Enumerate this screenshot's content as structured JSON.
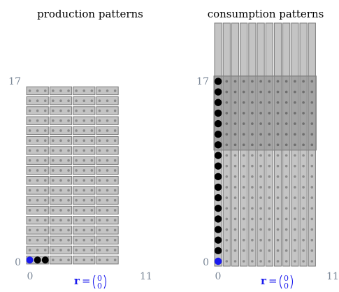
{
  "left_panel": {
    "title": "production patterns",
    "y_max_label": "17",
    "y_min_label": "0",
    "x_min_label": "0",
    "x_max_label": "11",
    "vector_name": "r",
    "vector_equals": "=",
    "vector_top": "0",
    "vector_bottom": "0",
    "black_token_cells": [
      1,
      2
    ],
    "blue_token_cell": 0
  },
  "right_panel": {
    "title": "consumption patterns",
    "y_max_label": "17",
    "y_min_label": "0",
    "x_min_label": "0",
    "x_max_label": "11",
    "vector_name": "r",
    "vector_equals": "=",
    "vector_top": "0",
    "vector_bottom": "0",
    "black_token_rows": [
      1,
      2,
      3,
      4,
      5,
      6,
      7,
      8,
      9,
      10,
      11,
      12,
      13,
      14,
      15,
      16,
      17
    ],
    "blue_token_row": 0,
    "highlight_rows_from": 11,
    "highlight_rows_to": 17
  },
  "colors": {
    "cell_fill": "#c4c4c4",
    "cell_stroke": "#7c7c7c",
    "dot": "#8c8c8c",
    "highlight": "#8f8f8f",
    "token_black": "#000000",
    "token_blue": "#1a1aee",
    "tick_text": "#7a8797"
  }
}
